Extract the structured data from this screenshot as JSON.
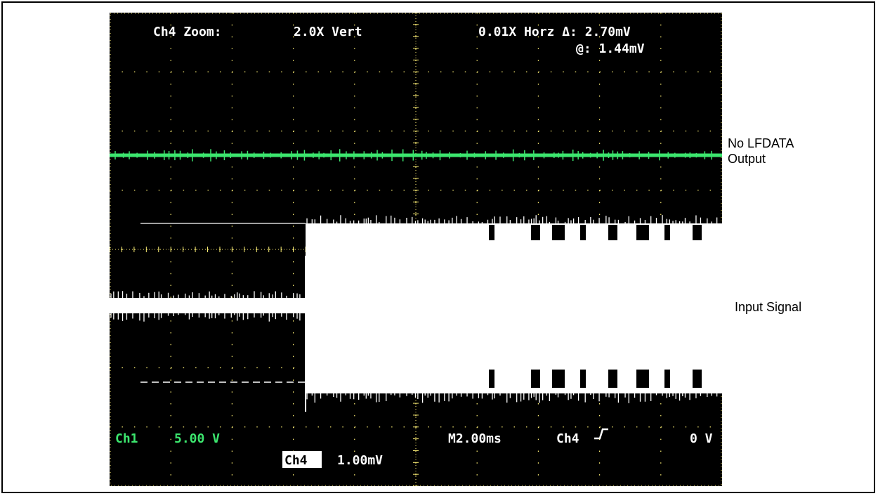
{
  "scope": {
    "header_left": "Ch4 Zoom:",
    "header_mid": "2.0X Vert",
    "header_right": "0.01X Horz Δ: 2.70mV",
    "header_right2": "@: 1.44mV",
    "ch1_label": "Ch1",
    "ch1_scale": "5.00 V",
    "ch4_badge": "Ch4",
    "ch4_scale": "1.00mV",
    "timebase": "M2.00ms",
    "trigger_source": "Ch4",
    "trigger_slope_icon": "rising-edge-icon",
    "trigger_level": "0 V"
  },
  "annotations": {
    "lfdata_line1": "No LFDATA",
    "lfdata_line2": "Output",
    "input_signal": "Input Signal"
  },
  "colors": {
    "screen_bg": "#000000",
    "graticule": "#fff176",
    "ch1_trace": "#3ce66e",
    "ch4_trace": "#ffffff",
    "ch1_text": "#3ce66e",
    "scope_text": "#ffffff"
  },
  "chart_data": {
    "type": "line",
    "title": "",
    "xlabel": "",
    "ylabel": "",
    "x_divisions": 10,
    "y_divisions": 8,
    "grid": true,
    "series": [
      {
        "name": "Ch1",
        "volts_per_div": 5.0,
        "level_div": 0.0,
        "x": [
          0,
          10
        ],
        "y_div": [
          0.0,
          0.0
        ]
      },
      {
        "name": "Ch4",
        "mv_per_div": 1.0,
        "zoom_vert": 2.0,
        "zoom_horz": 0.01,
        "segments": [
          {
            "x_start": 0.0,
            "x_end": 3.2,
            "upper_div": -2.35,
            "lower_div": -2.6
          },
          {
            "x_start": 3.2,
            "x_end": 10.0,
            "upper_div": -1.15,
            "lower_div": -4.7
          }
        ]
      }
    ],
    "cursors": {
      "delta_mv": 2.7,
      "at_mv": 1.44
    },
    "timebase_ms_per_div": 2.0
  }
}
